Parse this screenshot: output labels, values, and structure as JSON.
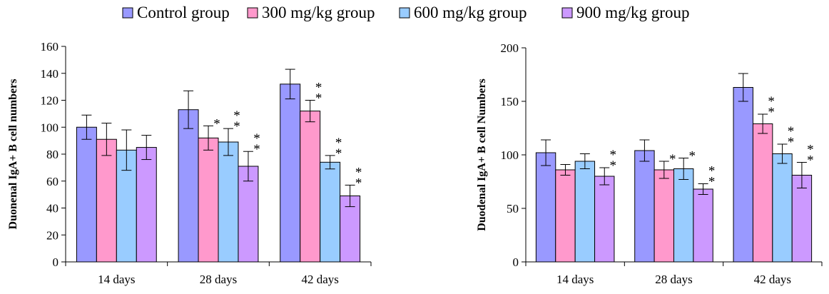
{
  "legend": {
    "items": [
      {
        "label": "Control group",
        "color": "#9999ff"
      },
      {
        "label": "300 mg/kg group",
        "color": "#ff99cc"
      },
      {
        "label": "600 mg/kg group",
        "color": "#99ccff"
      },
      {
        "label": "900 mg/kg group",
        "color": "#cc99ff"
      }
    ]
  },
  "chart_data": [
    {
      "type": "bar",
      "ylabel": "Duonenal IgA+ B cell numbers",
      "xlabel": "",
      "categories": [
        "14 days",
        "28 days",
        "42 days"
      ],
      "ylim": [
        0,
        160
      ],
      "yticks": [
        "0",
        "20",
        "40",
        "60",
        "80",
        "100",
        "120",
        "140",
        "160"
      ],
      "grid": false,
      "legend_position": "top",
      "series": [
        {
          "name": "Control group",
          "values": [
            100,
            113,
            132
          ],
          "errors": [
            9,
            14,
            11
          ],
          "stars": [
            0,
            0,
            0
          ]
        },
        {
          "name": "300 mg/kg group",
          "values": [
            91,
            92,
            112
          ],
          "errors": [
            12,
            9,
            8
          ],
          "stars": [
            0,
            1,
            2
          ]
        },
        {
          "name": "600 mg/kg group",
          "values": [
            83,
            89,
            74
          ],
          "errors": [
            15,
            10,
            5
          ],
          "stars": [
            0,
            2,
            2
          ]
        },
        {
          "name": "900 mg/kg group",
          "values": [
            85,
            71,
            49
          ],
          "errors": [
            9,
            11,
            8
          ],
          "stars": [
            0,
            2,
            2
          ]
        }
      ],
      "star_glyph": "*"
    },
    {
      "type": "bar",
      "ylabel": "Duodenal IgA+ B cell Numbers",
      "xlabel": "",
      "categories": [
        "14 days",
        "28 days",
        "42 days"
      ],
      "ylim": [
        0,
        200
      ],
      "yticks": [
        "0",
        "50",
        "100",
        "150",
        "200"
      ],
      "grid": false,
      "legend_position": "top",
      "series": [
        {
          "name": "Control group",
          "values": [
            102,
            104,
            163
          ],
          "errors": [
            12,
            10,
            13
          ],
          "stars": [
            0,
            0,
            0
          ]
        },
        {
          "name": "300 mg/kg group",
          "values": [
            86,
            86,
            129
          ],
          "errors": [
            5,
            8,
            9
          ],
          "stars": [
            0,
            1,
            2
          ]
        },
        {
          "name": "600 mg/kg group",
          "values": [
            94,
            87,
            101
          ],
          "errors": [
            7,
            10,
            9
          ],
          "stars": [
            0,
            1,
            2
          ]
        },
        {
          "name": "900 mg/kg group",
          "values": [
            80,
            68,
            81
          ],
          "errors": [
            8,
            5,
            12
          ],
          "stars": [
            2,
            2,
            2
          ]
        }
      ],
      "star_glyph": "*"
    }
  ]
}
